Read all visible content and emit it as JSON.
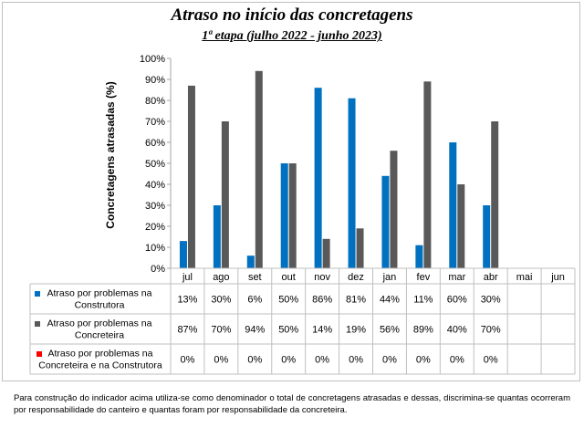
{
  "chart_data": {
    "type": "bar",
    "title": "Atraso no início das concretagens",
    "subtitle": "1ª etapa (julho 2022 - junho 2023)",
    "ylabel": "Concretagens atrasadas (%)",
    "ylim": [
      0,
      100
    ],
    "yticks": [
      "0%",
      "10%",
      "20%",
      "30%",
      "40%",
      "50%",
      "60%",
      "70%",
      "80%",
      "90%",
      "100%"
    ],
    "categories": [
      "jul",
      "ago",
      "set",
      "out",
      "nov",
      "dez",
      "jan",
      "fev",
      "mar",
      "abr",
      "mai",
      "jun"
    ],
    "series": [
      {
        "name": "Atraso por problemas na Construtora",
        "name_lines": [
          "Atraso por problemas na",
          "Construtora"
        ],
        "color": "#0070c0",
        "values": [
          13,
          30,
          6,
          50,
          86,
          81,
          44,
          11,
          60,
          30,
          null,
          null
        ],
        "labels": [
          "13%",
          "30%",
          "6%",
          "50%",
          "86%",
          "81%",
          "44%",
          "11%",
          "60%",
          "30%",
          "",
          ""
        ]
      },
      {
        "name": "Atraso por problemas na Concreteira",
        "name_lines": [
          "Atraso por problemas na",
          "Concreteira"
        ],
        "color": "#595959",
        "values": [
          87,
          70,
          94,
          50,
          14,
          19,
          56,
          89,
          40,
          70,
          null,
          null
        ],
        "labels": [
          "87%",
          "70%",
          "94%",
          "50%",
          "14%",
          "19%",
          "56%",
          "89%",
          "40%",
          "70%",
          "",
          ""
        ]
      },
      {
        "name": "Atraso por problemas na Concreteira e na Construtora",
        "name_lines": [
          "Atraso por problemas na",
          "Concreteira e na Construtora"
        ],
        "color": "#ff0000",
        "values": [
          0,
          0,
          0,
          0,
          0,
          0,
          0,
          0,
          0,
          0,
          null,
          null
        ],
        "labels": [
          "0%",
          "0%",
          "0%",
          "0%",
          "0%",
          "0%",
          "0%",
          "0%",
          "0%",
          "0%",
          "",
          ""
        ]
      }
    ],
    "grid": false,
    "legend": "data-table"
  },
  "note": "Para construção do indicador acima utiliza-se como denominador o total de concretagens atrasadas e dessas, discrimina-se quantas ocorreram por responsabilidade do canteiro e quantas foram por responsabilidade da concreteira."
}
